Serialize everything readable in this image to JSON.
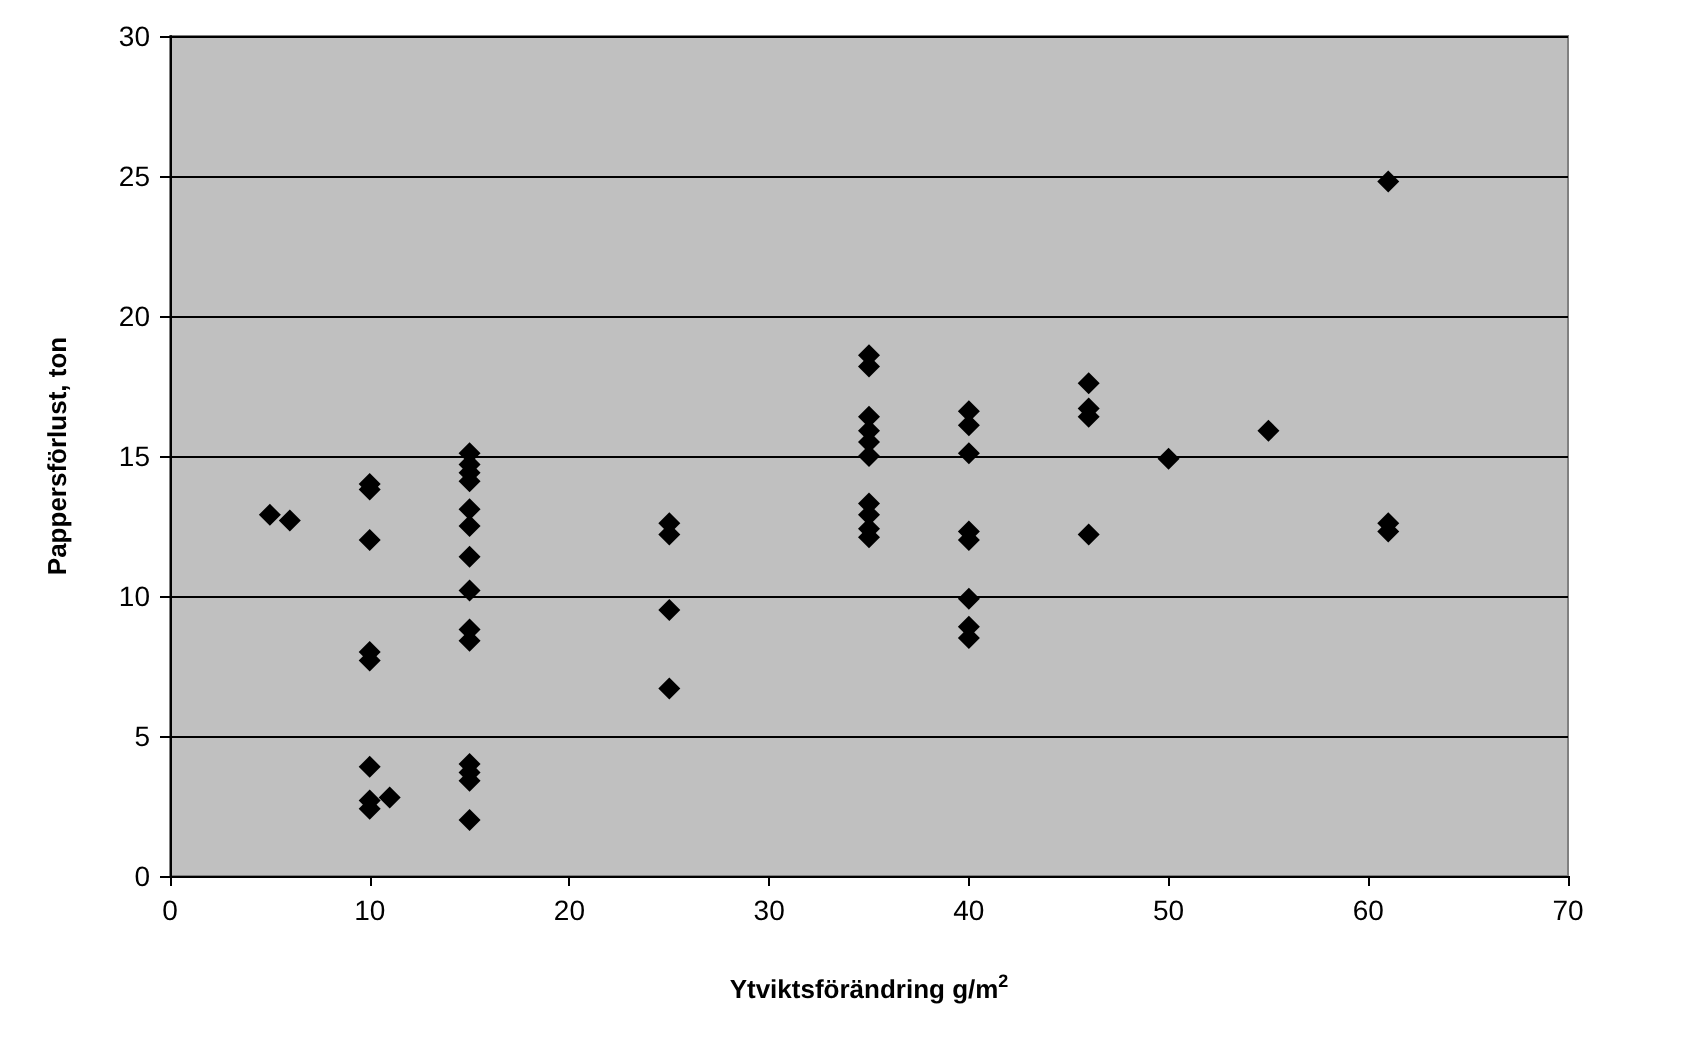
{
  "chart_data": {
    "type": "scatter",
    "xlabel": "Ytviktsförändring g/m$^{2}$",
    "ylabel": "Pappersförlust, ton",
    "x": [
      5,
      6,
      10,
      10,
      10,
      10,
      10,
      10,
      10,
      10,
      11,
      15,
      15,
      15,
      15,
      15,
      15,
      15,
      15,
      15,
      15,
      15,
      15,
      15,
      15,
      25,
      25,
      25,
      25,
      35,
      35,
      35,
      35,
      35,
      35,
      35,
      35,
      35,
      35,
      40,
      40,
      40,
      40,
      40,
      40,
      40,
      40,
      46,
      46,
      46,
      46,
      50,
      55,
      61,
      61,
      61
    ],
    "values": [
      12.9,
      12.7,
      14.0,
      13.8,
      12.0,
      8.0,
      7.7,
      3.9,
      2.7,
      2.4,
      2.8,
      15.1,
      14.7,
      14.4,
      14.1,
      13.1,
      12.5,
      11.4,
      10.2,
      8.8,
      8.4,
      4.0,
      3.7,
      3.4,
      2.0,
      12.6,
      12.2,
      9.5,
      6.7,
      18.6,
      18.2,
      16.4,
      15.9,
      15.5,
      15.0,
      13.3,
      12.9,
      12.4,
      12.1,
      16.6,
      16.1,
      15.1,
      12.3,
      12.0,
      9.9,
      8.9,
      8.5,
      17.6,
      16.7,
      16.4,
      12.2,
      14.9,
      15.9,
      24.8,
      12.6,
      12.3
    ],
    "color": "#000000",
    "marker": "diamond",
    "grid": "y",
    "xlim": [
      0,
      70
    ],
    "xticks": [
      0,
      10,
      20,
      30,
      40,
      50,
      60,
      70
    ],
    "ylim": [
      0,
      30
    ],
    "yticks": [
      0,
      5,
      10,
      15,
      20,
      25,
      30
    ]
  }
}
